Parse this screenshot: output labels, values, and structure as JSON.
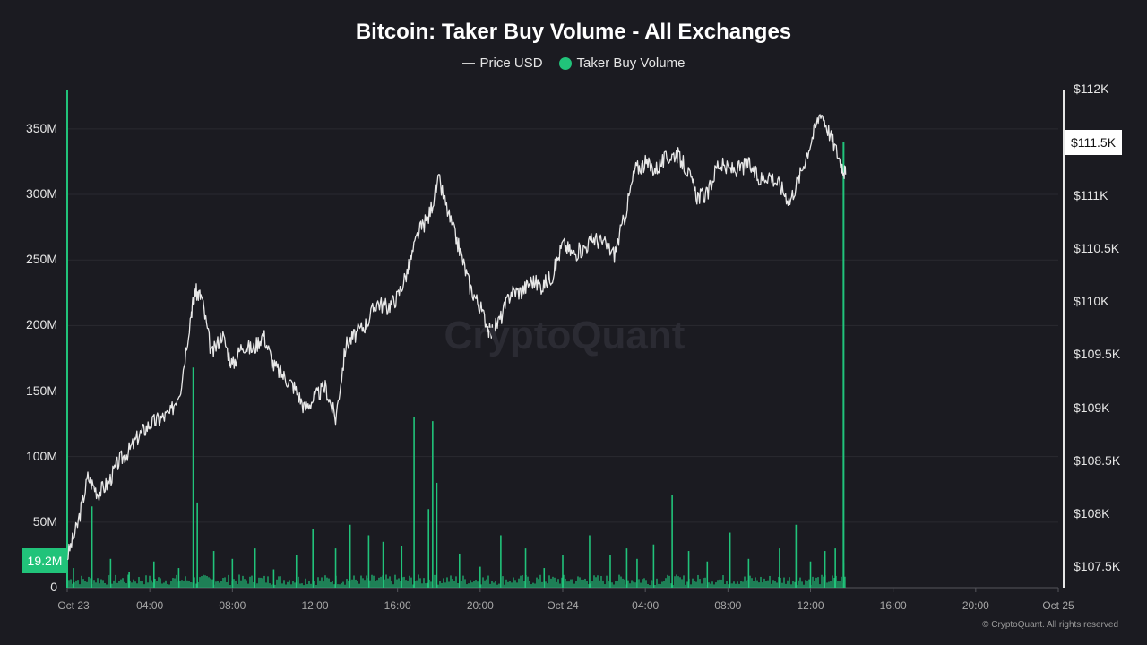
{
  "chart_data": {
    "type": "line",
    "title": "Bitcoin: Taker Buy Volume - All Exchanges",
    "legend": [
      {
        "name": "Price USD",
        "color": "#cfcfcf",
        "marker": "line"
      },
      {
        "name": "Taker Buy Volume",
        "color": "#21c37a",
        "marker": "dot"
      }
    ],
    "legend_position": "top-center",
    "x_ticks": [
      "Oct 23",
      "04:00",
      "08:00",
      "12:00",
      "16:00",
      "20:00",
      "Oct 24",
      "04:00",
      "08:00",
      "12:00",
      "16:00",
      "20:00",
      "Oct 25"
    ],
    "x_range_hours": [
      0,
      48
    ],
    "y_left": {
      "ticks": [
        "0",
        "50M",
        "100M",
        "150M",
        "200M",
        "250M",
        "300M",
        "350M"
      ],
      "range": [
        0,
        380000000
      ],
      "current_label": "19.2M"
    },
    "y_right": {
      "ticks": [
        "$107.5K",
        "$108K",
        "$108.5K",
        "$109K",
        "$109.5K",
        "$110K",
        "$110.5K",
        "$111K",
        "$111.5K",
        "$112K"
      ],
      "range": [
        107310,
        112000
      ],
      "current_label": "$111.5K"
    },
    "grid": "horizontal",
    "series": [
      {
        "name": "Price USD",
        "axis": "right",
        "color": "#e8e8e8",
        "x_hours": [
          0,
          0.5,
          1,
          1.5,
          2,
          2.5,
          3,
          3.5,
          4,
          4.5,
          5,
          5.5,
          6,
          6.2,
          6.5,
          7,
          7.5,
          8,
          8.5,
          9,
          9.5,
          10,
          10.5,
          11,
          11.5,
          12,
          12.5,
          13,
          13.5,
          14,
          14.5,
          15,
          15.5,
          16,
          16.5,
          17,
          17.5,
          18,
          18.5,
          19,
          19.5,
          20,
          20.5,
          21,
          21.5,
          22,
          22.5,
          23,
          23.5,
          24,
          24.5,
          25,
          25.5,
          26,
          26.5,
          27,
          27.5,
          28,
          28.5,
          29,
          29.5,
          30,
          30.5,
          31,
          31.5,
          32,
          32.5,
          33,
          33.5,
          34,
          34.5,
          35,
          35.5,
          36,
          36.5,
          37,
          37.5,
          37.7
        ],
        "values": [
          107600,
          107900,
          108350,
          108200,
          108300,
          108500,
          108600,
          108750,
          108850,
          108900,
          108950,
          109200,
          109900,
          110100,
          110050,
          109500,
          109700,
          109400,
          109600,
          109550,
          109700,
          109400,
          109300,
          109200,
          109000,
          109100,
          109200,
          108900,
          109600,
          109700,
          109800,
          110000,
          109950,
          110050,
          110300,
          110650,
          110800,
          111150,
          110800,
          110500,
          110150,
          109950,
          109700,
          109850,
          110100,
          110100,
          110200,
          110150,
          110250,
          110550,
          110450,
          110500,
          110600,
          110550,
          110450,
          110800,
          111250,
          111300,
          111250,
          111350,
          111400,
          111250,
          111000,
          111000,
          111300,
          111250,
          111250,
          111300,
          111150,
          111200,
          111100,
          110950,
          111200,
          111500,
          111800,
          111550,
          111300,
          111200
        ]
      },
      {
        "name": "Taker Buy Volume",
        "axis": "left",
        "color": "#21c37a",
        "x_hours": [
          0.3,
          1.2,
          2.1,
          3.0,
          4.2,
          5.4,
          6.1,
          6.3,
          7.1,
          8.0,
          9.1,
          10.0,
          11.1,
          11.9,
          13.0,
          13.7,
          14.6,
          15.3,
          16.2,
          16.8,
          17.5,
          17.7,
          17.9,
          19.0,
          20.0,
          21.0,
          22.2,
          23.1,
          24.0,
          25.3,
          26.3,
          27.1,
          27.6,
          28.4,
          29.3,
          30.1,
          31.0,
          32.1,
          33.0,
          34.5,
          35.3,
          36.0,
          36.7,
          37.2,
          37.6
        ],
        "values": [
          15000000,
          62000000,
          22000000,
          12000000,
          20000000,
          15000000,
          168000000,
          65000000,
          28000000,
          22000000,
          30000000,
          14000000,
          25000000,
          45000000,
          30000000,
          48000000,
          40000000,
          35000000,
          32000000,
          130000000,
          60000000,
          127000000,
          80000000,
          26000000,
          16000000,
          40000000,
          30000000,
          15000000,
          25000000,
          40000000,
          25000000,
          30000000,
          22000000,
          33000000,
          71000000,
          28000000,
          20000000,
          42000000,
          22000000,
          30000000,
          48000000,
          20000000,
          28000000,
          30000000,
          19200000
        ]
      }
    ],
    "final_spike_top": 340000000
  },
  "watermark": "CryptoQuant",
  "copyright": "© CryptoQuant. All rights reserved"
}
